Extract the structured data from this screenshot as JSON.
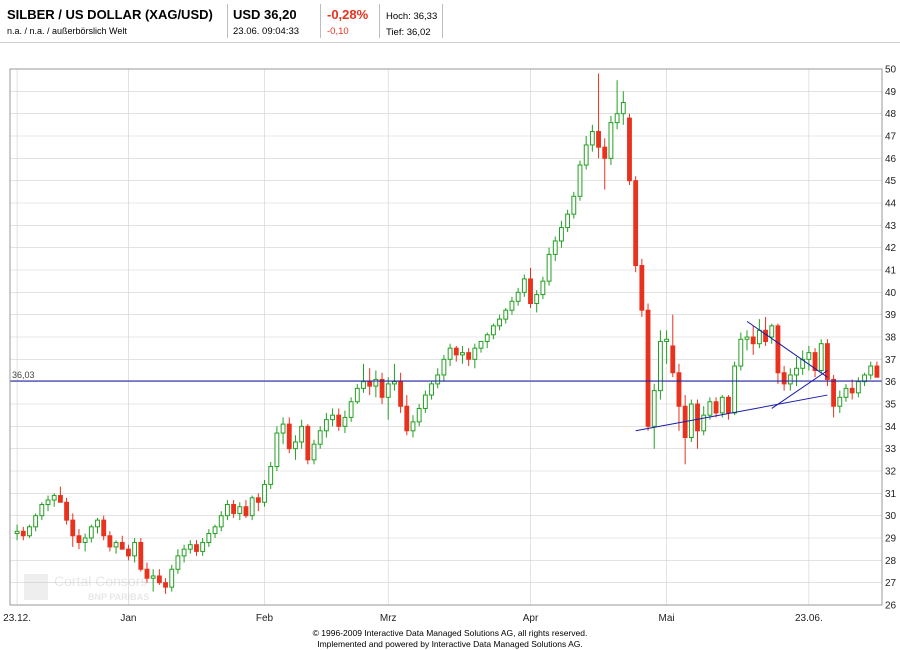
{
  "header": {
    "title": "SILBER / US DOLLAR (XAG/USD)",
    "subtitle": "n.a. / n.a. / außerbörslich Welt",
    "price": "USD 36,20",
    "timestamp": "23.06. 09:04:33",
    "change_pct": "-0,28%",
    "change_abs": "-0,10",
    "high": "Hoch: 36,33",
    "low": "Tief: 36,02"
  },
  "watermark": {
    "line1": "Cortal Consors",
    "line2": "BNP PARIBAS"
  },
  "footer": {
    "line1": "© 1996-2009 Interactive Data Managed Solutions AG, all rights reserved.",
    "line2": "Implemented and powered by Interactive Data Managed Solutions AG."
  },
  "colors": {
    "up": "#22a022",
    "down": "#e8321e",
    "trendline": "#1a1aa8",
    "grid": "#d0d0d0"
  },
  "chart_data": {
    "type": "candlestick",
    "ylim": [
      26,
      50
    ],
    "yticks": [
      26,
      27,
      28,
      29,
      30,
      31,
      32,
      33,
      34,
      35,
      36,
      37,
      38,
      39,
      40,
      41,
      42,
      43,
      44,
      45,
      46,
      47,
      48,
      49,
      50
    ],
    "xticks": [
      {
        "label": "23.12.",
        "i": 0
      },
      {
        "label": "Jan",
        "i": 18
      },
      {
        "label": "Feb",
        "i": 40
      },
      {
        "label": "Mrz",
        "i": 60
      },
      {
        "label": "Apr",
        "i": 83
      },
      {
        "label": "Mai",
        "i": 105
      },
      {
        "label": "23.06.",
        "i": 128
      }
    ],
    "reference_line": {
      "value": 36.03,
      "label": "36,03"
    },
    "trendlines": [
      {
        "from": {
          "i": 100,
          "v": 33.8
        },
        "to": {
          "i": 131,
          "v": 35.4
        }
      },
      {
        "from": {
          "i": 118,
          "v": 38.7
        },
        "to": {
          "i": 131,
          "v": 36.2
        }
      },
      {
        "from": {
          "i": 122,
          "v": 34.8
        },
        "to": {
          "i": 131,
          "v": 36.5
        }
      }
    ],
    "candles": [
      [
        29.2,
        29.6,
        28.9,
        29.3
      ],
      [
        29.3,
        29.5,
        28.9,
        29.1
      ],
      [
        29.1,
        29.6,
        29.0,
        29.5
      ],
      [
        29.5,
        30.1,
        29.3,
        30.0
      ],
      [
        30.0,
        30.6,
        29.8,
        30.5
      ],
      [
        30.5,
        30.9,
        30.2,
        30.7
      ],
      [
        30.7,
        31.0,
        30.4,
        30.9
      ],
      [
        30.9,
        31.3,
        30.6,
        30.6
      ],
      [
        30.6,
        30.8,
        29.6,
        29.8
      ],
      [
        29.8,
        30.1,
        28.6,
        29.1
      ],
      [
        29.1,
        29.4,
        28.5,
        28.8
      ],
      [
        28.8,
        29.2,
        28.4,
        29.0
      ],
      [
        29.0,
        29.6,
        28.8,
        29.5
      ],
      [
        29.5,
        29.9,
        29.2,
        29.8
      ],
      [
        29.8,
        30.0,
        28.9,
        29.1
      ],
      [
        29.1,
        29.3,
        28.4,
        28.6
      ],
      [
        28.6,
        28.9,
        28.3,
        28.8
      ],
      [
        28.8,
        29.1,
        28.5,
        28.5
      ],
      [
        28.5,
        28.7,
        28.0,
        28.2
      ],
      [
        28.2,
        29.0,
        27.9,
        28.8
      ],
      [
        28.8,
        29.0,
        27.5,
        27.6
      ],
      [
        27.6,
        27.9,
        27.0,
        27.2
      ],
      [
        27.2,
        27.6,
        26.6,
        27.3
      ],
      [
        27.3,
        27.6,
        26.9,
        27.0
      ],
      [
        27.0,
        27.2,
        26.5,
        26.8
      ],
      [
        26.8,
        27.8,
        26.6,
        27.6
      ],
      [
        27.6,
        28.5,
        27.4,
        28.2
      ],
      [
        28.2,
        28.7,
        27.9,
        28.5
      ],
      [
        28.5,
        28.9,
        28.3,
        28.7
      ],
      [
        28.7,
        28.9,
        28.2,
        28.4
      ],
      [
        28.4,
        29.0,
        28.2,
        28.8
      ],
      [
        28.8,
        29.4,
        28.6,
        29.2
      ],
      [
        29.2,
        29.6,
        29.0,
        29.5
      ],
      [
        29.5,
        30.2,
        29.3,
        30.0
      ],
      [
        30.0,
        30.7,
        29.8,
        30.5
      ],
      [
        30.5,
        30.7,
        29.9,
        30.1
      ],
      [
        30.1,
        30.6,
        29.8,
        30.4
      ],
      [
        30.4,
        30.7,
        29.9,
        30.0
      ],
      [
        30.0,
        30.9,
        29.8,
        30.8
      ],
      [
        30.8,
        31.0,
        30.2,
        30.6
      ],
      [
        30.6,
        31.6,
        30.4,
        31.4
      ],
      [
        31.4,
        32.4,
        31.2,
        32.2
      ],
      [
        32.2,
        34.0,
        32.0,
        33.7
      ],
      [
        33.7,
        34.4,
        33.2,
        34.1
      ],
      [
        34.1,
        34.4,
        32.8,
        33.0
      ],
      [
        33.0,
        33.6,
        32.5,
        33.3
      ],
      [
        33.3,
        34.3,
        33.0,
        34.0
      ],
      [
        34.0,
        34.1,
        32.3,
        32.5
      ],
      [
        32.5,
        33.4,
        32.3,
        33.2
      ],
      [
        33.2,
        34.0,
        33.0,
        33.8
      ],
      [
        33.8,
        34.6,
        33.5,
        34.3
      ],
      [
        34.3,
        34.8,
        34.0,
        34.5
      ],
      [
        34.5,
        34.8,
        33.8,
        34.0
      ],
      [
        34.0,
        34.7,
        33.7,
        34.4
      ],
      [
        34.4,
        35.3,
        34.2,
        35.1
      ],
      [
        35.1,
        35.9,
        35.0,
        35.7
      ],
      [
        35.7,
        36.8,
        35.5,
        36.0
      ],
      [
        36.0,
        36.6,
        35.4,
        35.8
      ],
      [
        35.8,
        36.5,
        35.3,
        36.1
      ],
      [
        36.1,
        36.4,
        35.0,
        35.3
      ],
      [
        35.3,
        36.2,
        34.3,
        35.9
      ],
      [
        35.9,
        36.8,
        35.6,
        36.0
      ],
      [
        36.0,
        36.4,
        34.6,
        34.9
      ],
      [
        34.9,
        35.4,
        33.6,
        33.8
      ],
      [
        33.8,
        34.5,
        33.5,
        34.2
      ],
      [
        34.2,
        35.0,
        34.0,
        34.8
      ],
      [
        34.8,
        35.6,
        34.6,
        35.4
      ],
      [
        35.4,
        36.0,
        35.2,
        35.9
      ],
      [
        35.9,
        36.6,
        35.7,
        36.3
      ],
      [
        36.3,
        37.2,
        36.0,
        37.0
      ],
      [
        37.0,
        37.7,
        36.7,
        37.5
      ],
      [
        37.5,
        37.6,
        36.9,
        37.2
      ],
      [
        37.2,
        37.6,
        36.8,
        37.3
      ],
      [
        37.3,
        37.5,
        36.7,
        37.0
      ],
      [
        37.0,
        37.7,
        36.6,
        37.5
      ],
      [
        37.5,
        37.8,
        37.3,
        37.8
      ],
      [
        37.8,
        38.2,
        37.5,
        38.1
      ],
      [
        38.1,
        38.6,
        37.9,
        38.5
      ],
      [
        38.5,
        39.0,
        38.3,
        38.8
      ],
      [
        38.8,
        39.3,
        38.6,
        39.2
      ],
      [
        39.2,
        39.8,
        39.0,
        39.6
      ],
      [
        39.6,
        40.2,
        39.4,
        40.0
      ],
      [
        40.0,
        40.8,
        39.8,
        40.6
      ],
      [
        40.6,
        41.1,
        39.3,
        39.5
      ],
      [
        39.5,
        40.1,
        39.1,
        39.9
      ],
      [
        39.9,
        40.7,
        39.7,
        40.5
      ],
      [
        40.5,
        42.0,
        40.3,
        41.7
      ],
      [
        41.7,
        42.5,
        41.4,
        42.3
      ],
      [
        42.3,
        43.2,
        42.0,
        42.9
      ],
      [
        42.9,
        43.7,
        42.7,
        43.5
      ],
      [
        43.5,
        44.5,
        43.3,
        44.3
      ],
      [
        44.3,
        45.9,
        44.1,
        45.7
      ],
      [
        45.7,
        47.0,
        45.5,
        46.6
      ],
      [
        46.6,
        47.5,
        46.3,
        47.2
      ],
      [
        47.2,
        49.8,
        46.0,
        46.5
      ],
      [
        46.5,
        46.9,
        44.6,
        46.0
      ],
      [
        46.0,
        47.9,
        45.7,
        47.6
      ],
      [
        47.6,
        49.5,
        47.3,
        48.0
      ],
      [
        48.0,
        49.0,
        47.5,
        48.5
      ],
      [
        47.8,
        48.0,
        44.8,
        45.0
      ],
      [
        45.0,
        45.2,
        40.9,
        41.2
      ],
      [
        41.2,
        41.5,
        38.9,
        39.2
      ],
      [
        39.2,
        39.5,
        33.8,
        34.0
      ],
      [
        34.0,
        35.9,
        33.0,
        35.6
      ],
      [
        35.6,
        38.3,
        35.2,
        37.8
      ],
      [
        37.8,
        38.3,
        36.8,
        37.9
      ],
      [
        37.6,
        39.0,
        36.2,
        36.4
      ],
      [
        36.4,
        36.8,
        33.8,
        34.9
      ],
      [
        34.9,
        35.4,
        32.3,
        33.5
      ],
      [
        33.5,
        35.2,
        33.3,
        35.0
      ],
      [
        35.0,
        35.2,
        33.0,
        33.8
      ],
      [
        33.8,
        34.9,
        33.6,
        34.5
      ],
      [
        34.5,
        35.3,
        34.3,
        35.1
      ],
      [
        35.1,
        35.3,
        34.4,
        34.6
      ],
      [
        34.6,
        35.4,
        34.4,
        35.3
      ],
      [
        35.3,
        35.4,
        34.3,
        34.6
      ],
      [
        34.6,
        36.9,
        34.5,
        36.7
      ],
      [
        36.7,
        38.2,
        36.5,
        37.9
      ],
      [
        37.9,
        38.3,
        37.4,
        38.0
      ],
      [
        38.0,
        38.5,
        37.2,
        37.7
      ],
      [
        37.7,
        38.8,
        37.5,
        38.3
      ],
      [
        38.3,
        38.9,
        37.6,
        37.8
      ],
      [
        38.0,
        38.6,
        37.7,
        38.5
      ],
      [
        38.5,
        38.6,
        35.9,
        36.4
      ],
      [
        36.4,
        36.7,
        35.6,
        35.9
      ],
      [
        35.9,
        36.6,
        35.6,
        36.3
      ],
      [
        36.3,
        37.1,
        35.8,
        36.6
      ],
      [
        36.6,
        37.4,
        36.3,
        37.0
      ],
      [
        37.0,
        37.6,
        36.5,
        37.3
      ],
      [
        37.3,
        37.5,
        36.2,
        36.5
      ],
      [
        36.5,
        37.9,
        36.4,
        37.7
      ],
      [
        37.7,
        37.9,
        35.8,
        36.1
      ],
      [
        36.1,
        36.3,
        34.4,
        34.9
      ],
      [
        34.9,
        35.6,
        34.6,
        35.3
      ],
      [
        35.3,
        35.9,
        35.1,
        35.7
      ],
      [
        35.7,
        36.1,
        35.2,
        35.5
      ],
      [
        35.5,
        36.2,
        35.3,
        36.0
      ],
      [
        36.0,
        36.4,
        35.8,
        36.3
      ],
      [
        36.3,
        36.9,
        36.1,
        36.7
      ],
      [
        36.7,
        36.9,
        36.2,
        36.2
      ]
    ]
  }
}
